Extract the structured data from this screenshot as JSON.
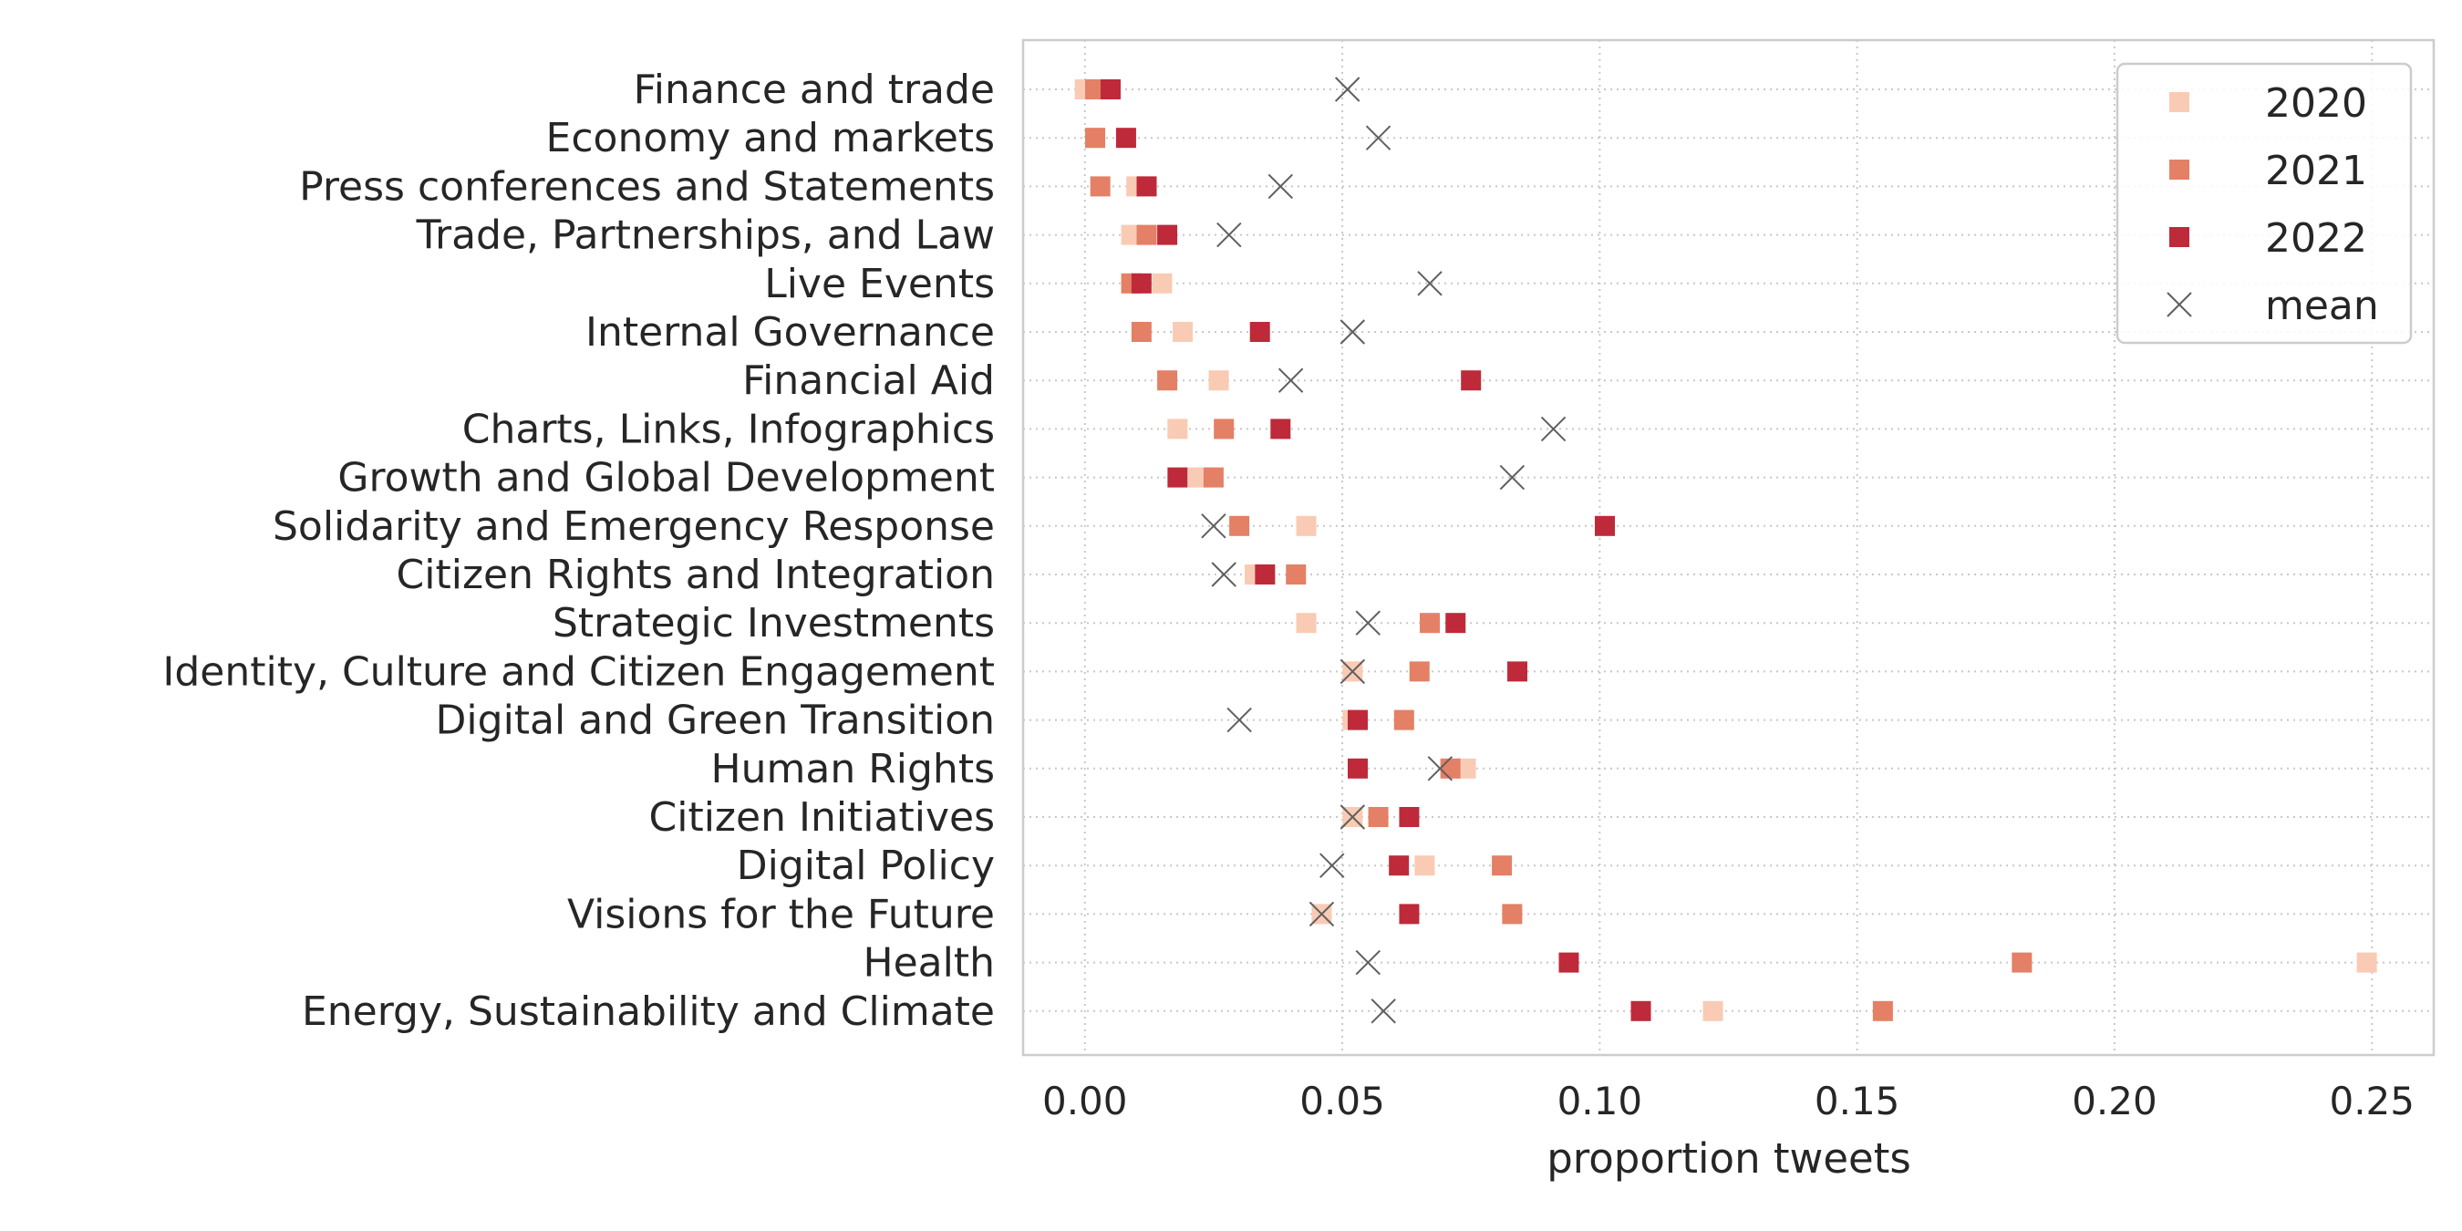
{
  "chart_data": {
    "type": "scatter",
    "orientation": "horizontal",
    "xlabel": "proportion tweets",
    "ylabel": "",
    "xlim": [
      -0.012,
      0.262
    ],
    "xticks": [
      0.0,
      0.05,
      0.1,
      0.15,
      0.2,
      0.25
    ],
    "xtick_labels": [
      "0.00",
      "0.05",
      "0.10",
      "0.15",
      "0.20",
      "0.25"
    ],
    "grid": true,
    "legend_position": "top-right",
    "categories": [
      "Finance and trade",
      "Economy and markets",
      "Press conferences and Statements",
      "Trade, Partnerships, and Law",
      "Live Events",
      "Internal Governance",
      "Financial Aid",
      "Charts, Links, Infographics",
      "Growth and Global Development",
      "Solidarity and Emergency Response",
      "Citizen Rights and Integration",
      "Strategic Investments",
      "Identity, Culture and Citizen Engagement",
      "Digital and Green Transition",
      "Human Rights",
      "Citizen Initiatives",
      "Digital Policy",
      "Visions for the Future",
      "Health",
      "Energy, Sustainability and Climate"
    ],
    "series": [
      {
        "name": "2020",
        "color": "#f9cbb4",
        "marker": "square",
        "values": [
          0.0,
          0.002,
          0.01,
          0.009,
          0.015,
          0.019,
          0.026,
          0.018,
          0.022,
          0.043,
          0.033,
          0.043,
          0.052,
          0.052,
          0.074,
          0.052,
          0.066,
          0.046,
          0.249,
          0.122
        ]
      },
      {
        "name": "2021",
        "color": "#e48066",
        "marker": "square",
        "values": [
          0.002,
          0.002,
          0.003,
          0.012,
          0.009,
          0.011,
          0.016,
          0.027,
          0.025,
          0.03,
          0.041,
          0.067,
          0.065,
          0.062,
          0.071,
          0.057,
          0.081,
          0.083,
          0.182,
          0.155
        ]
      },
      {
        "name": "2022",
        "color": "#be2a3a",
        "marker": "square",
        "values": [
          0.005,
          0.008,
          0.012,
          0.016,
          0.011,
          0.034,
          0.075,
          0.038,
          0.018,
          0.101,
          0.035,
          0.072,
          0.084,
          0.053,
          0.053,
          0.063,
          0.061,
          0.063,
          0.094,
          0.108
        ]
      },
      {
        "name": "mean",
        "color": "#5f5f5f",
        "marker": "x",
        "values": [
          0.051,
          0.057,
          0.038,
          0.028,
          0.067,
          0.052,
          0.04,
          0.091,
          0.083,
          0.025,
          0.027,
          0.055,
          0.052,
          0.03,
          0.069,
          0.052,
          0.048,
          0.046,
          0.055,
          0.058
        ]
      }
    ]
  }
}
